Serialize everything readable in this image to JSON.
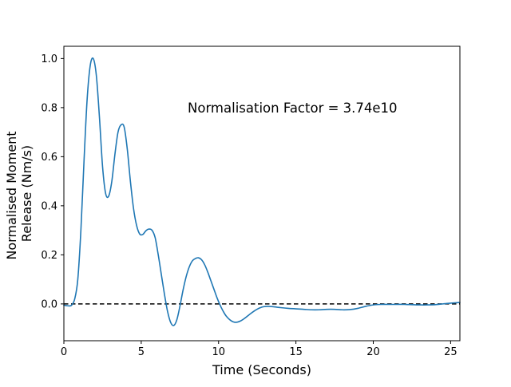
{
  "chart_data": {
    "type": "line",
    "title": "",
    "xlabel": "Time (Seconds)",
    "ylabel_lines": [
      "Normalised Moment",
      "Release (Nm/s)"
    ],
    "xlim": [
      0,
      25.6
    ],
    "ylim": [
      -0.15,
      1.05
    ],
    "x_ticks": [
      0,
      5,
      10,
      15,
      20,
      25
    ],
    "x_tick_labels": [
      "0",
      "5",
      "10",
      "15",
      "20",
      "25"
    ],
    "y_ticks": [
      0.0,
      0.2,
      0.4,
      0.6,
      0.8,
      1.0
    ],
    "y_tick_labels": [
      "0.0",
      "0.2",
      "0.4",
      "0.6",
      "0.8",
      "1.0"
    ],
    "grid": false,
    "legend": false,
    "annotation": {
      "text": "Normalisation Factor = 3.74e10",
      "x": 8.0,
      "y": 0.8
    },
    "reference_line": {
      "y": 0.0,
      "style": "dashed",
      "color": "#000000"
    },
    "series": [
      {
        "color": "#1f77b4",
        "x": [
          0.0,
          0.3,
          0.5,
          0.7,
          0.9,
          1.1,
          1.3,
          1.5,
          1.7,
          1.9,
          2.1,
          2.3,
          2.5,
          2.7,
          2.9,
          3.1,
          3.3,
          3.5,
          3.7,
          3.9,
          4.1,
          4.3,
          4.5,
          4.7,
          4.9,
          5.1,
          5.3,
          5.5,
          5.7,
          5.9,
          6.1,
          6.3,
          6.5,
          6.7,
          6.9,
          7.1,
          7.3,
          7.5,
          7.7,
          7.9,
          8.1,
          8.3,
          8.5,
          8.7,
          8.9,
          9.1,
          9.3,
          9.5,
          9.7,
          9.9,
          10.1,
          10.3,
          10.5,
          10.8,
          11.1,
          11.4,
          11.7,
          12.0,
          12.4,
          12.8,
          13.2,
          13.6,
          14.0,
          14.5,
          15.0,
          15.5,
          16.0,
          16.5,
          17.0,
          17.5,
          18.0,
          18.5,
          19.0,
          19.5,
          20.0,
          20.5,
          21.0,
          21.5,
          22.0,
          22.5,
          23.0,
          23.5,
          24.0,
          24.5,
          25.0,
          25.6
        ],
        "y": [
          -0.005,
          -0.008,
          -0.005,
          0.02,
          0.1,
          0.3,
          0.58,
          0.83,
          0.97,
          1.0,
          0.93,
          0.76,
          0.56,
          0.45,
          0.44,
          0.5,
          0.61,
          0.7,
          0.73,
          0.72,
          0.63,
          0.5,
          0.39,
          0.32,
          0.285,
          0.283,
          0.298,
          0.305,
          0.3,
          0.27,
          0.2,
          0.12,
          0.04,
          -0.03,
          -0.075,
          -0.088,
          -0.065,
          -0.01,
          0.055,
          0.11,
          0.15,
          0.175,
          0.185,
          0.188,
          0.18,
          0.16,
          0.13,
          0.095,
          0.06,
          0.025,
          -0.005,
          -0.03,
          -0.05,
          -0.068,
          -0.075,
          -0.07,
          -0.058,
          -0.043,
          -0.025,
          -0.013,
          -0.01,
          -0.012,
          -0.015,
          -0.018,
          -0.02,
          -0.022,
          -0.024,
          -0.024,
          -0.022,
          -0.022,
          -0.024,
          -0.023,
          -0.018,
          -0.01,
          -0.004,
          -0.002,
          -0.002,
          -0.002,
          -0.002,
          -0.003,
          -0.004,
          -0.004,
          -0.003,
          0.0,
          0.003,
          0.006
        ]
      }
    ]
  }
}
